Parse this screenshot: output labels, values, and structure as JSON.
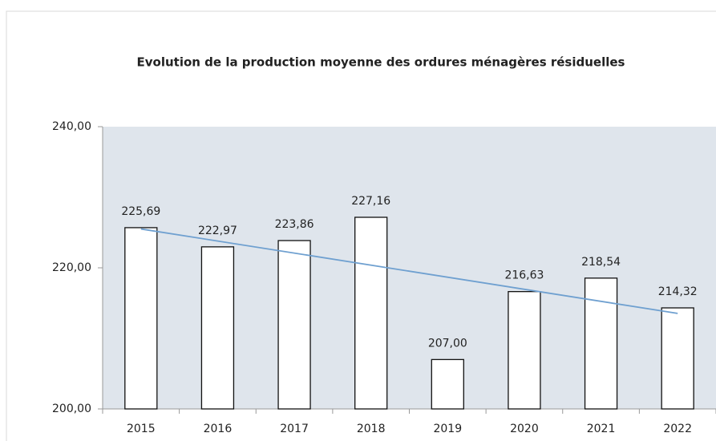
{
  "chart_data": {
    "type": "bar",
    "title": "Evolution de la production moyenne des ordures ménagères résiduelles",
    "categories": [
      "2015",
      "2016",
      "2017",
      "2018",
      "2019",
      "2020",
      "2021",
      "2022"
    ],
    "values": [
      225.69,
      222.97,
      223.86,
      227.16,
      207.0,
      216.63,
      218.54,
      214.32
    ],
    "value_labels": [
      "225,69",
      "222,97",
      "223,86",
      "227,16",
      "207,00",
      "216,63",
      "218,54",
      "214,32"
    ],
    "color": "#ffffff",
    "ylim": [
      200,
      240
    ],
    "yticks": [
      {
        "value": 200,
        "label": "200,00"
      },
      {
        "value": 220,
        "label": "220,00"
      },
      {
        "value": 240,
        "label": "240,00"
      }
    ],
    "trendline": true,
    "trendline_color": "#6fa0d0"
  }
}
